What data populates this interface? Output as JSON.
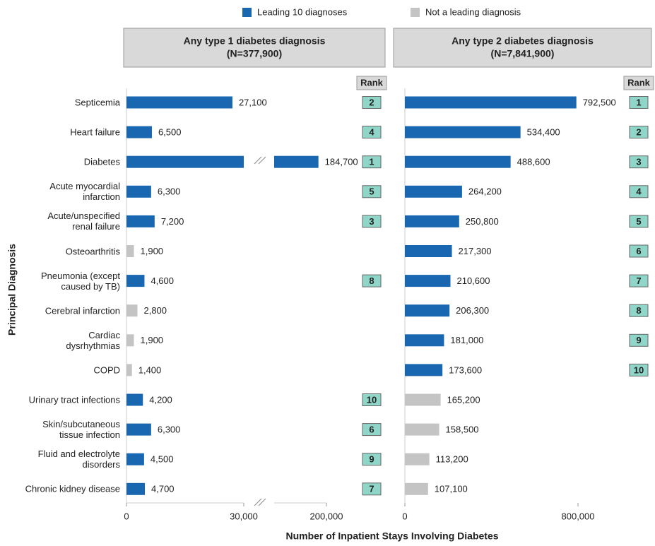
{
  "legend": [
    {
      "name": "Leading 10 diagnoses",
      "color": "#1a67b1"
    },
    {
      "name": "Not a leading diagnosis",
      "color": "#c4c4c4"
    }
  ],
  "ylabel": "Principal Diagnosis",
  "xlabel": "Number of Inpatient Stays Involving Diabetes",
  "chart_data": [
    {
      "type": "bar",
      "orientation": "horizontal",
      "title": "Any type 1 diabetes diagnosis",
      "subtitle": "(N=377,900)",
      "rank_label": "Rank",
      "categories": [
        "Septicemia",
        "Heart failure",
        "Diabetes",
        "Acute myocardial\ninfarction",
        "Acute/unspecified\nrenal failure",
        "Osteoarthritis",
        "Pneumonia (except\ncaused by TB)",
        "Cerebral infarction",
        "Cardiac\ndysrhythmias",
        "COPD",
        "Urinary tract infections",
        "Skin/subcutaneous\ntissue infection",
        "Fluid and electrolyte\ndisorders",
        "Chronic kidney disease"
      ],
      "values": [
        27100,
        6500,
        184700,
        6300,
        7200,
        1900,
        4600,
        2800,
        1900,
        1400,
        4200,
        6300,
        4500,
        4700
      ],
      "value_labels": [
        "27,100",
        "6,500",
        "184,700",
        "6,300",
        "7,200",
        "1,900",
        "4,600",
        "2,800",
        "1,900",
        "1,400",
        "4,200",
        "6,300",
        "4,500",
        "4,700"
      ],
      "ranks": [
        2,
        4,
        1,
        5,
        3,
        null,
        8,
        null,
        null,
        null,
        10,
        6,
        9,
        7
      ],
      "xlim": [
        0,
        30000
      ],
      "break_xlim": [
        100000,
        200000
      ],
      "xticks": [
        0,
        {
          "value": 30000,
          "label": "30,000"
        },
        {
          "value": 200000,
          "label": "200,000"
        }
      ]
    },
    {
      "type": "bar",
      "orientation": "horizontal",
      "title": "Any type 2 diabetes diagnosis",
      "subtitle": "(N=7,841,900)",
      "rank_label": "Rank",
      "values": [
        792500,
        534400,
        488600,
        264200,
        250800,
        217300,
        210600,
        206300,
        181000,
        173600,
        165200,
        158500,
        113200,
        107100
      ],
      "value_labels": [
        "792,500",
        "534,400",
        "488,600",
        "264,200",
        "250,800",
        "217,300",
        "210,600",
        "206,300",
        "181,000",
        "173,600",
        "165,200",
        "158,500",
        "113,200",
        "107,100"
      ],
      "ranks": [
        1,
        2,
        3,
        4,
        5,
        6,
        7,
        8,
        9,
        10,
        null,
        null,
        null,
        null
      ],
      "xlim": [
        0,
        800000
      ],
      "xticks": [
        0,
        {
          "value": 800000,
          "label": "800,000"
        }
      ]
    }
  ]
}
